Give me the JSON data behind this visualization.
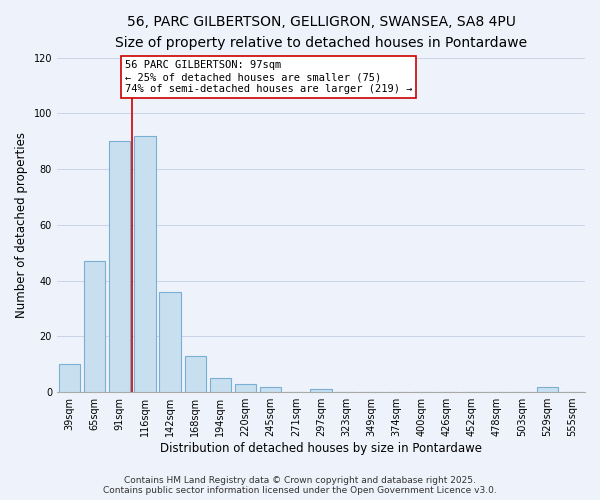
{
  "title": "56, PARC GILBERTSON, GELLIGRON, SWANSEA, SA8 4PU",
  "subtitle": "Size of property relative to detached houses in Pontardawe",
  "xlabel": "Distribution of detached houses by size in Pontardawe",
  "ylabel": "Number of detached properties",
  "categories": [
    "39sqm",
    "65sqm",
    "91sqm",
    "116sqm",
    "142sqm",
    "168sqm",
    "194sqm",
    "220sqm",
    "245sqm",
    "271sqm",
    "297sqm",
    "323sqm",
    "349sqm",
    "374sqm",
    "400sqm",
    "426sqm",
    "452sqm",
    "478sqm",
    "503sqm",
    "529sqm",
    "555sqm"
  ],
  "values": [
    10,
    47,
    90,
    92,
    36,
    13,
    5,
    3,
    2,
    0,
    1,
    0,
    0,
    0,
    0,
    0,
    0,
    0,
    0,
    2,
    0
  ],
  "bar_color": "#c8dff0",
  "bar_edge_color": "#7aafd4",
  "grid_color": "#c8d4e8",
  "background_color": "#eef2fa",
  "vline_x_index": 2.5,
  "vline_color": "#cc0000",
  "annotation_line1": "56 PARC GILBERTSON: 97sqm",
  "annotation_line2": "← 25% of detached houses are smaller (75)",
  "annotation_line3": "74% of semi-detached houses are larger (219) →",
  "ylim": [
    0,
    120
  ],
  "yticks": [
    0,
    20,
    40,
    60,
    80,
    100,
    120
  ],
  "footer_line1": "Contains HM Land Registry data © Crown copyright and database right 2025.",
  "footer_line2": "Contains public sector information licensed under the Open Government Licence v3.0.",
  "title_fontsize": 10,
  "subtitle_fontsize": 9,
  "axis_label_fontsize": 8.5,
  "tick_fontsize": 7,
  "annotation_fontsize": 7.5,
  "footer_fontsize": 6.5
}
